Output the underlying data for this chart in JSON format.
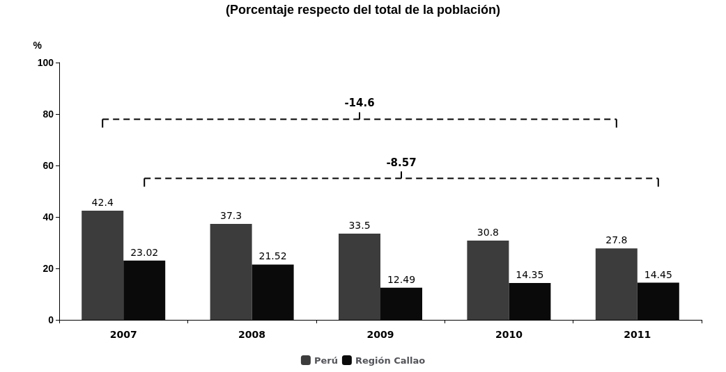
{
  "chart_data": {
    "type": "bar",
    "title": "(Porcentaje respecto del total de la población)",
    "ylabel": "%",
    "categories": [
      "2007",
      "2008",
      "2009",
      "2010",
      "2011"
    ],
    "series": [
      {
        "name": "Perú",
        "color": "#3c3c3c",
        "values": [
          42.4,
          37.3,
          33.5,
          30.8,
          27.8
        ]
      },
      {
        "name": "Región Callao",
        "color": "#0a0a0a",
        "values": [
          23.02,
          21.52,
          12.49,
          14.35,
          14.45
        ]
      }
    ],
    "ylim": [
      0,
      100
    ],
    "yticks": [
      0,
      20,
      40,
      60,
      80,
      100
    ],
    "grid": false,
    "legend": "bottom",
    "data_labels": true,
    "annotations": [
      "-14.6",
      "-8.57"
    ]
  }
}
